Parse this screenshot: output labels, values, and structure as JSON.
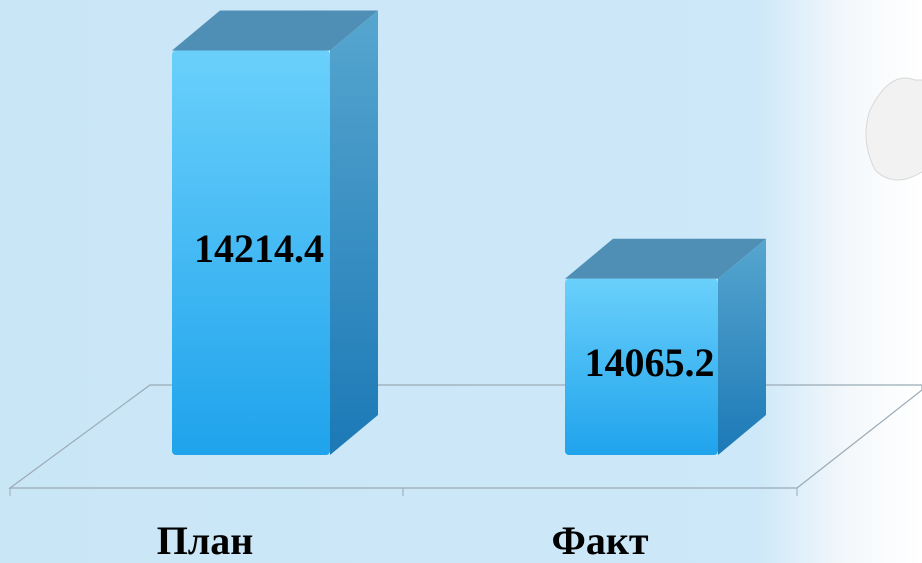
{
  "chart_data": {
    "type": "bar",
    "categories": [
      "План",
      "Факт"
    ],
    "values": [
      14214.4,
      14065.2
    ],
    "color": "#39b3f0",
    "ylim": [
      13950,
      14250
    ]
  }
}
